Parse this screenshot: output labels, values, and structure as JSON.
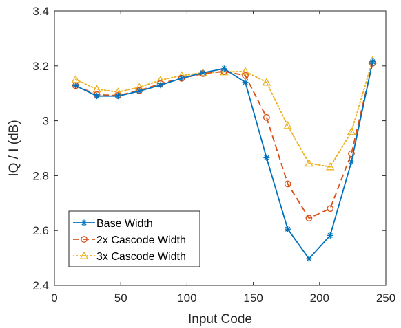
{
  "chart_data": {
    "type": "line",
    "title": "",
    "xlabel": "Input Code",
    "ylabel": "IQ / I (dB)",
    "xlim": [
      0,
      250
    ],
    "ylim": [
      2.4,
      3.4
    ],
    "xticks": [
      0,
      50,
      100,
      150,
      200,
      250
    ],
    "yticks": [
      2.4,
      2.6,
      2.8,
      3,
      3.2,
      3.4
    ],
    "xtick_labels": [
      "0",
      "50",
      "100",
      "150",
      "200",
      "250"
    ],
    "ytick_labels": [
      "2.4",
      "2.6",
      "2.8",
      "3",
      "3.2",
      "3.4"
    ],
    "grid": false,
    "legend_position": "bottom-left",
    "x": [
      16,
      32,
      48,
      64,
      80,
      96,
      112,
      128,
      144,
      160,
      176,
      192,
      208,
      224,
      240
    ],
    "series": [
      {
        "name": "Base Width",
        "color": "#0072BD",
        "line_style": "solid",
        "marker": "asterisk",
        "values": [
          3.128,
          3.09,
          3.09,
          3.108,
          3.13,
          3.155,
          3.175,
          3.19,
          3.14,
          2.865,
          2.605,
          2.497,
          2.582,
          2.85,
          3.215
        ]
      },
      {
        "name": "2x Cascode Width",
        "color": "#D95319",
        "line_style": "dashed",
        "marker": "circle",
        "values": [
          3.128,
          3.095,
          3.092,
          3.11,
          3.135,
          3.155,
          3.172,
          3.18,
          3.165,
          3.012,
          2.77,
          2.645,
          2.68,
          2.88,
          3.21
        ]
      },
      {
        "name": "3x Cascode Width",
        "color": "#EDB120",
        "line_style": "dotted",
        "marker": "triangle",
        "values": [
          3.15,
          3.115,
          3.105,
          3.122,
          3.148,
          3.165,
          3.175,
          3.178,
          3.18,
          3.14,
          2.982,
          2.845,
          2.832,
          2.96,
          3.22
        ]
      }
    ]
  }
}
